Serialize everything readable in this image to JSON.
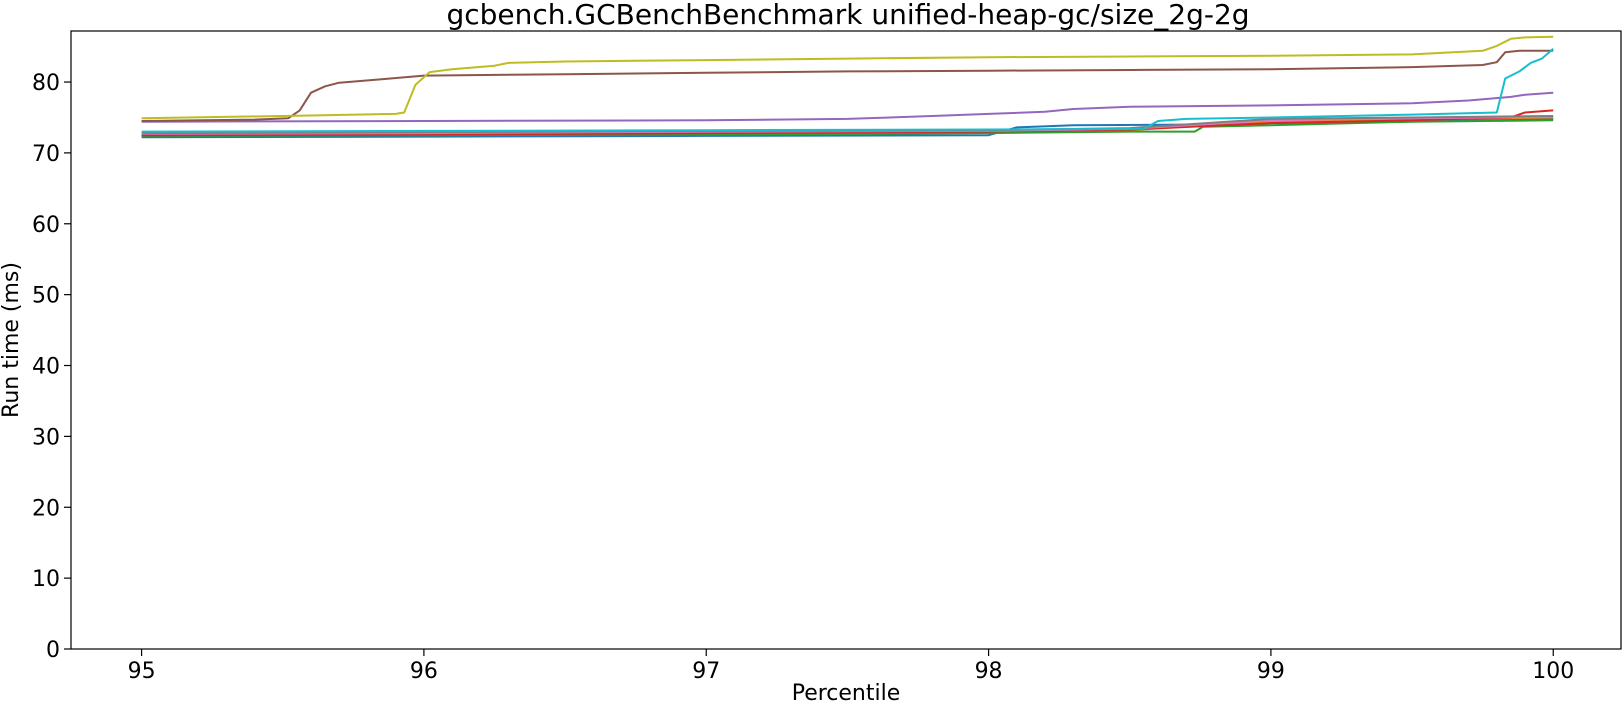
{
  "chart_data": {
    "type": "line",
    "title": "gcbench.GCBenchBenchmark unified-heap-gc/size_2g-2g",
    "xlabel": "Percentile",
    "ylabel": "Run time (ms)",
    "xlim": [
      94.75,
      100.24
    ],
    "ylim": [
      0,
      87.2
    ],
    "xticks": [
      95,
      96,
      97,
      98,
      99,
      100
    ],
    "yticks": [
      0,
      10,
      20,
      30,
      40,
      50,
      60,
      70,
      80
    ],
    "grid": false,
    "legend": "none",
    "series": [
      {
        "color": "#1f77b4",
        "points": [
          [
            95,
            72.2
          ],
          [
            96,
            72.3
          ],
          [
            97,
            72.4
          ],
          [
            98,
            72.5
          ],
          [
            98.1,
            73.6
          ],
          [
            98.3,
            73.9
          ],
          [
            98.7,
            74.0
          ],
          [
            99,
            74.2
          ],
          [
            99.5,
            74.5
          ],
          [
            100,
            74.8
          ]
        ]
      },
      {
        "color": "#ff7f0e",
        "points": [
          [
            95,
            72.6
          ],
          [
            96,
            72.7
          ],
          [
            97,
            72.9
          ],
          [
            98,
            73.0
          ],
          [
            98.5,
            73.2
          ],
          [
            99,
            74.4
          ],
          [
            99.5,
            74.7
          ],
          [
            100,
            75.0
          ]
        ]
      },
      {
        "color": "#2ca02c",
        "points": [
          [
            95,
            72.4
          ],
          [
            96,
            72.5
          ],
          [
            97,
            72.6
          ],
          [
            98,
            72.8
          ],
          [
            98.5,
            73.0
          ],
          [
            98.73,
            73.0
          ],
          [
            98.76,
            73.7
          ],
          [
            99,
            73.9
          ],
          [
            99.5,
            74.4
          ],
          [
            100,
            74.6
          ]
        ]
      },
      {
        "color": "#d62728",
        "points": [
          [
            95,
            72.5
          ],
          [
            96,
            72.6
          ],
          [
            97,
            72.8
          ],
          [
            98,
            73.0
          ],
          [
            98.5,
            73.3
          ],
          [
            99,
            74.2
          ],
          [
            99.5,
            74.6
          ],
          [
            99.85,
            75.0
          ],
          [
            99.9,
            75.7
          ],
          [
            100,
            76.0
          ]
        ]
      },
      {
        "color": "#9467bd",
        "points": [
          [
            95,
            74.4
          ],
          [
            96,
            74.5
          ],
          [
            97,
            74.6
          ],
          [
            97.5,
            74.8
          ],
          [
            97.8,
            75.2
          ],
          [
            98,
            75.5
          ],
          [
            98.2,
            75.8
          ],
          [
            98.3,
            76.2
          ],
          [
            98.5,
            76.5
          ],
          [
            99,
            76.7
          ],
          [
            99.5,
            77.0
          ],
          [
            99.7,
            77.4
          ],
          [
            99.85,
            77.9
          ],
          [
            99.9,
            78.2
          ],
          [
            100,
            78.5
          ]
        ]
      },
      {
        "color": "#8c564b",
        "points": [
          [
            95,
            74.5
          ],
          [
            95.4,
            74.7
          ],
          [
            95.52,
            74.9
          ],
          [
            95.56,
            76.0
          ],
          [
            95.6,
            78.5
          ],
          [
            95.65,
            79.4
          ],
          [
            95.7,
            79.9
          ],
          [
            95.85,
            80.4
          ],
          [
            96,
            80.9
          ],
          [
            96.5,
            81.1
          ],
          [
            97,
            81.3
          ],
          [
            97.5,
            81.5
          ],
          [
            98,
            81.6
          ],
          [
            98.5,
            81.7
          ],
          [
            99,
            81.8
          ],
          [
            99.5,
            82.1
          ],
          [
            99.75,
            82.4
          ],
          [
            99.8,
            82.8
          ],
          [
            99.83,
            84.2
          ],
          [
            99.88,
            84.4
          ],
          [
            100,
            84.4
          ]
        ]
      },
      {
        "color": "#e377c2",
        "points": [
          [
            95,
            72.7
          ],
          [
            96,
            72.8
          ],
          [
            97,
            73.0
          ],
          [
            98,
            73.1
          ],
          [
            98.5,
            73.4
          ],
          [
            99,
            74.6
          ],
          [
            99.5,
            74.9
          ],
          [
            100,
            75.1
          ]
        ]
      },
      {
        "color": "#7f7f7f",
        "points": [
          [
            95,
            72.8
          ],
          [
            96,
            72.9
          ],
          [
            97,
            73.1
          ],
          [
            98,
            73.2
          ],
          [
            98.5,
            73.5
          ],
          [
            99,
            74.8
          ],
          [
            99.5,
            75.0
          ],
          [
            100,
            75.2
          ]
        ]
      },
      {
        "color": "#bcbd22",
        "points": [
          [
            95,
            74.9
          ],
          [
            95.5,
            75.2
          ],
          [
            95.9,
            75.5
          ],
          [
            95.93,
            75.7
          ],
          [
            95.97,
            79.6
          ],
          [
            96.02,
            81.4
          ],
          [
            96.1,
            81.8
          ],
          [
            96.25,
            82.3
          ],
          [
            96.3,
            82.7
          ],
          [
            96.5,
            82.9
          ],
          [
            97,
            83.1
          ],
          [
            97.5,
            83.3
          ],
          [
            98,
            83.5
          ],
          [
            98.5,
            83.6
          ],
          [
            99,
            83.7
          ],
          [
            99.5,
            83.9
          ],
          [
            99.75,
            84.4
          ],
          [
            99.8,
            85.1
          ],
          [
            99.85,
            86.1
          ],
          [
            99.9,
            86.3
          ],
          [
            100,
            86.4
          ]
        ]
      },
      {
        "color": "#17becf",
        "points": [
          [
            95,
            73.0
          ],
          [
            96,
            73.1
          ],
          [
            97,
            73.2
          ],
          [
            98,
            73.3
          ],
          [
            98.55,
            73.4
          ],
          [
            98.6,
            74.5
          ],
          [
            98.7,
            74.8
          ],
          [
            99,
            75.0
          ],
          [
            99.5,
            75.4
          ],
          [
            99.8,
            75.7
          ],
          [
            99.83,
            80.5
          ],
          [
            99.88,
            81.5
          ],
          [
            99.92,
            82.7
          ],
          [
            99.96,
            83.3
          ],
          [
            100,
            84.7
          ]
        ]
      }
    ]
  }
}
